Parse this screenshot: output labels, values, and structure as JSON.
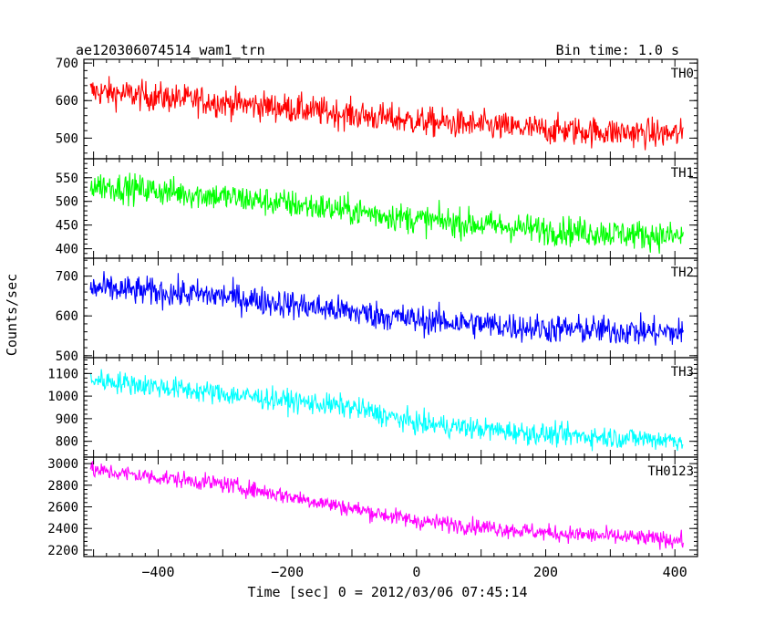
{
  "header": {
    "title": "ae120306074514_wam1_trn",
    "bin_time": "Bin time: 1.0 s"
  },
  "chart_data": {
    "type": "line",
    "title": "ae120306074514_wam1_trn",
    "subtitle": "Bin time: 1.0 s",
    "xlabel": "Time [sec] 0 = 2012/03/06 07:45:14",
    "ylabel": "Counts/sec",
    "xlim": [
      -515,
      435
    ],
    "x_ticks": [
      -400,
      -200,
      0,
      200,
      400
    ],
    "x_start": -505,
    "x_end": 413,
    "panels": [
      {
        "name": "TH0",
        "color": "#ff0000",
        "ylim": [
          445,
          710
        ],
        "y_ticks": [
          500,
          600,
          700
        ],
        "trend": [
          [
            -505,
            625
          ],
          [
            -300,
            595
          ],
          [
            -200,
            580
          ],
          [
            0,
            545
          ],
          [
            200,
            522
          ],
          [
            413,
            510
          ]
        ],
        "noise": 28
      },
      {
        "name": "TH1",
        "color": "#00ff00",
        "ylim": [
          380,
          590
        ],
        "y_ticks": [
          400,
          450,
          500,
          550
        ],
        "trend": [
          [
            -505,
            535
          ],
          [
            -300,
            510
          ],
          [
            -100,
            480
          ],
          [
            0,
            462
          ],
          [
            200,
            440
          ],
          [
            413,
            425
          ]
        ],
        "noise": 22
      },
      {
        "name": "TH2",
        "color": "#0000ff",
        "ylim": [
          495,
          745
        ],
        "y_ticks": [
          500,
          600,
          700
        ],
        "trend": [
          [
            -505,
            670
          ],
          [
            -300,
            650
          ],
          [
            -200,
            630
          ],
          [
            0,
            590
          ],
          [
            200,
            568
          ],
          [
            413,
            558
          ]
        ],
        "noise": 26
      },
      {
        "name": "TH3",
        "color": "#00ffff",
        "ylim": [
          730,
          1170
        ],
        "y_ticks": [
          800,
          900,
          1000,
          1100
        ],
        "trend": [
          [
            -505,
            1075
          ],
          [
            -300,
            1010
          ],
          [
            -100,
            950
          ],
          [
            0,
            880
          ],
          [
            200,
            830
          ],
          [
            413,
            805
          ]
        ],
        "noise": 35
      },
      {
        "name": "TH0123",
        "color": "#ff00ff",
        "ylim": [
          2140,
          3060
        ],
        "y_ticks": [
          2200,
          2400,
          2600,
          2800,
          3000
        ],
        "trend": [
          [
            -505,
            2940
          ],
          [
            -300,
            2810
          ],
          [
            -200,
            2700
          ],
          [
            0,
            2470
          ],
          [
            200,
            2360
          ],
          [
            413,
            2290
          ]
        ],
        "noise": 55
      }
    ]
  }
}
